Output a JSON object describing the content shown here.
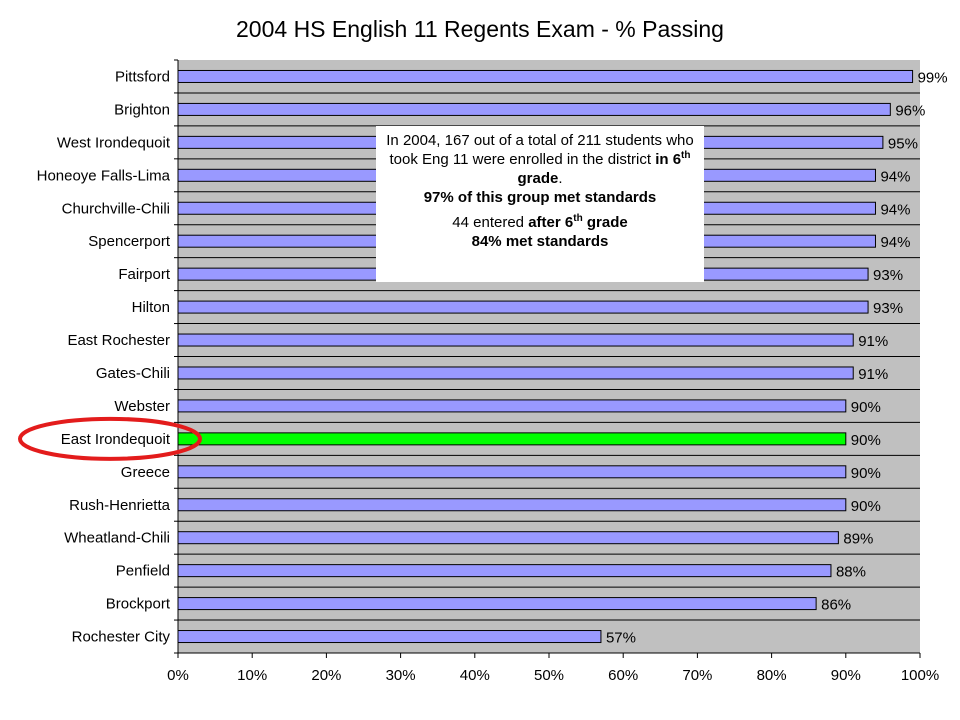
{
  "chart_data": {
    "type": "bar",
    "orientation": "horizontal",
    "title": "2004 HS English 11 Regents Exam - % Passing",
    "categories": [
      "Pittsford",
      "Brighton",
      "West Irondequoit",
      "Honeoye Falls-Lima",
      "Churchville-Chili",
      "Spencerport",
      "Fairport",
      "Hilton",
      "East Rochester",
      "Gates-Chili",
      "Webster",
      "East Irondequoit",
      "Greece",
      "Rush-Henrietta",
      "Wheatland-Chili",
      "Penfield",
      "Brockport",
      "Rochester City"
    ],
    "values": [
      99,
      96,
      95,
      94,
      94,
      94,
      93,
      93,
      91,
      91,
      90,
      90,
      90,
      90,
      89,
      88,
      86,
      57
    ],
    "value_labels": [
      "99%",
      "96%",
      "95%",
      "94%",
      "94%",
      "94%",
      "93%",
      "93%",
      "91%",
      "91%",
      "90%",
      "90%",
      "90%",
      "90%",
      "89%",
      "88%",
      "86%",
      "57%"
    ],
    "xlim": [
      0,
      100
    ],
    "x_ticks": [
      "0%",
      "10%",
      "20%",
      "30%",
      "40%",
      "50%",
      "60%",
      "70%",
      "80%",
      "90%",
      "100%"
    ],
    "grid": "horizontal",
    "highlight_category": "East Irondequoit",
    "colors": {
      "bar": "#9999ff",
      "highlight_bar": "#00ff00",
      "plot_background": "#c0c0c0",
      "highlight_circle": "#e31c1c"
    }
  },
  "callout": {
    "p1_a": "In 2004, 167 out of a total of 211 students who took Eng 11 were enrolled in the district ",
    "p1_b": "in 6",
    "p1_sup": "th",
    "p1_c": " grade",
    "p1_d": ".",
    "p1_e": "97% of this group met standards",
    "p2_a": "44 entered ",
    "p2_b": "after 6",
    "p2_sup": "th",
    "p2_c": " grade",
    "p2_d": "84% met standards"
  }
}
